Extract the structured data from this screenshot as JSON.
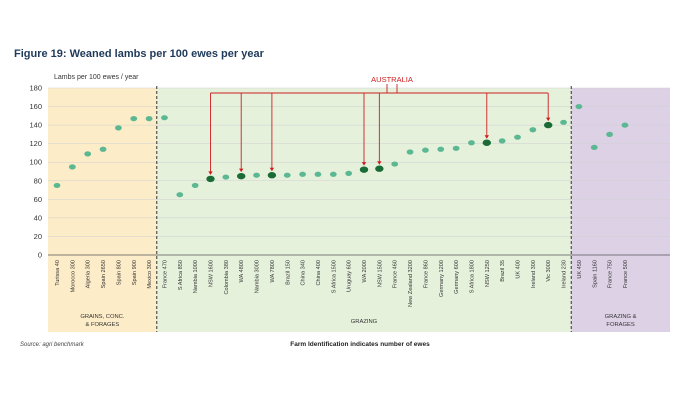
{
  "title": "Figure 19: Weaned lambs per 100 ewes per year",
  "source": "Source: agri benchmark",
  "footnote": "Farm Identification indicates number of ewes",
  "colors": {
    "title": "#1f3a5a",
    "point": "#5cb892",
    "highlight": "#1a6b36",
    "arrow": "#cc1f1f",
    "grains_bg": "#fdecc8",
    "grazing_bg": "#e6f1dc",
    "grazing_forages_bg": "#ddd1e6"
  },
  "chart_data": {
    "type": "scatter",
    "ylabel": "Lambs per 100 ewes / year",
    "ylim": [
      0,
      180
    ],
    "yticks": [
      0,
      20,
      40,
      60,
      80,
      100,
      120,
      140,
      160,
      180
    ],
    "grid": true,
    "annotation": "AUSTRALIA",
    "groups": [
      {
        "name": "GRAINS, CONC.\n& FORAGES",
        "start": 0,
        "end": 7
      },
      {
        "name": "GRAZING",
        "start": 7,
        "end": 34
      },
      {
        "name": "GRAZING &\nFORAGES",
        "start": 34,
        "end": 37
      }
    ],
    "categories": [
      "Turissa 40",
      "Morocco 300",
      "Algeria 300",
      "Spain 2650",
      "Spain 800",
      "Spain 900",
      "Mexico 300",
      "France 470",
      "S Africa 850",
      "Nambia 1000",
      "NSW 1600",
      "Colombia 380",
      "WA 4800",
      "Nambia 3000",
      "WA 7800",
      "Brazil 150",
      "China 340",
      "China 400",
      "S Africa 1500",
      "Uruguay 600",
      "WA 2000",
      "NSW 1500",
      "France 460",
      "New Zealand 3200",
      "France 860",
      "Germany 1200",
      "Germany 600",
      "S Africa 1800",
      "NSW 1250",
      "Brazil 35",
      "UK 400",
      "Ireland 300",
      "Vic 3000",
      "Ireland 230",
      "UK 450",
      "Spain 1160",
      "France 750",
      "France 500"
    ],
    "values": [
      75,
      95,
      109,
      114,
      137,
      147,
      147,
      148,
      65,
      75,
      82,
      84,
      85,
      86,
      86,
      86,
      87,
      87,
      87,
      88,
      92,
      93,
      98,
      111,
      113,
      114,
      115,
      121,
      121,
      123,
      127,
      135,
      140,
      143,
      160,
      116,
      130,
      140
    ],
    "australia": [
      "NSW 1600",
      "WA 4800",
      "WA 7800",
      "WA 2000",
      "NSW 1500",
      "NSW 1250",
      "Vic 3000"
    ]
  }
}
